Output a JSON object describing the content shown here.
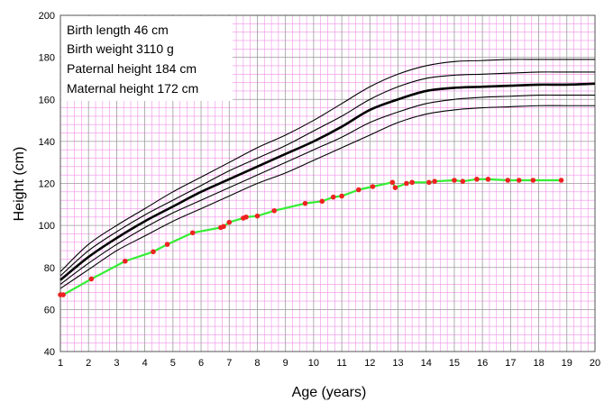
{
  "chart_data": {
    "type": "line",
    "xlabel": "Age (years)",
    "ylabel": "Height (cm)",
    "xlim": [
      1,
      20
    ],
    "ylim": [
      40,
      200
    ],
    "x_ticks": [
      1,
      2,
      3,
      4,
      5,
      6,
      7,
      8,
      9,
      10,
      11,
      12,
      13,
      14,
      15,
      16,
      17,
      18,
      19,
      20
    ],
    "y_ticks": [
      40,
      60,
      80,
      100,
      120,
      140,
      160,
      180,
      200
    ],
    "grid": "major and minor (pink minor grid, gray major grid)",
    "info_box": {
      "placement": "top-left",
      "lines": [
        "Birth length 46 cm",
        "Birth weight 3110 g",
        "Paternal height 184 cm",
        "Maternal height 172 cm"
      ]
    },
    "colors": {
      "minor_grid": "#f090e8",
      "major_grid": "#9a9a9a",
      "reference_curves": "#000000",
      "patient_line": "#33ee33",
      "patient_points": "#ee2222"
    },
    "reference_curves": [
      {
        "emphasis": "thin",
        "x": [
          1,
          2,
          3,
          4,
          5,
          6,
          7,
          8,
          9,
          10,
          11,
          12,
          13,
          14,
          15,
          16,
          17,
          18,
          19,
          20
        ],
        "y": [
          78,
          91,
          100,
          108,
          116,
          123,
          130,
          137,
          143,
          150,
          158,
          166,
          172,
          176,
          178,
          178.5,
          179,
          179,
          179,
          179
        ]
      },
      {
        "emphasis": "thin",
        "x": [
          1,
          2,
          3,
          4,
          5,
          6,
          7,
          8,
          9,
          10,
          11,
          12,
          13,
          14,
          15,
          16,
          17,
          18,
          19,
          20
        ],
        "y": [
          76,
          88,
          97,
          105,
          112,
          119,
          126,
          132,
          138,
          145,
          152,
          160,
          166,
          170,
          171.5,
          172,
          172.5,
          173,
          173,
          173
        ]
      },
      {
        "emphasis": "bold",
        "x": [
          1,
          2,
          3,
          4,
          5,
          6,
          7,
          8,
          9,
          10,
          11,
          12,
          13,
          14,
          15,
          16,
          17,
          18,
          19,
          20
        ],
        "y": [
          74,
          85,
          94,
          102,
          109,
          116,
          122,
          128,
          134,
          140,
          147,
          155,
          160,
          164,
          165.5,
          166,
          166.5,
          167,
          167,
          167.5
        ]
      },
      {
        "emphasis": "thin",
        "x": [
          1,
          2,
          3,
          4,
          5,
          6,
          7,
          8,
          9,
          10,
          11,
          12,
          13,
          14,
          15,
          16,
          17,
          18,
          19,
          20
        ],
        "y": [
          72,
          82,
          91,
          99,
          106,
          112,
          118,
          124,
          130,
          136,
          142,
          149,
          154,
          158,
          160,
          161,
          161.5,
          162,
          162,
          162
        ]
      },
      {
        "emphasis": "thin",
        "x": [
          1,
          2,
          3,
          4,
          5,
          6,
          7,
          8,
          9,
          10,
          11,
          12,
          13,
          14,
          15,
          16,
          17,
          18,
          19,
          20
        ],
        "y": [
          70,
          79,
          88,
          95,
          102,
          108,
          114,
          120,
          125,
          131,
          137,
          143,
          149,
          153,
          155,
          156,
          156.5,
          157,
          157,
          157
        ]
      }
    ],
    "patient": {
      "x": [
        1.0,
        1.1,
        2.1,
        3.3,
        4.3,
        4.8,
        5.7,
        6.7,
        6.8,
        7.0,
        7.5,
        7.6,
        8.0,
        8.6,
        9.7,
        10.3,
        10.7,
        11.0,
        11.6,
        12.1,
        12.8,
        12.9,
        13.3,
        13.5,
        14.1,
        14.3,
        15.0,
        15.3,
        15.8,
        16.2,
        16.9,
        17.3,
        17.8,
        18.8
      ],
      "y": [
        67,
        67,
        74.5,
        83,
        87.5,
        91,
        96.5,
        99,
        99.5,
        101.5,
        103.5,
        104,
        104.5,
        107,
        110.5,
        111.5,
        113.5,
        114,
        117,
        118.5,
        120.5,
        118,
        120,
        120.5,
        120.5,
        121,
        121.5,
        121,
        122,
        122,
        121.5,
        121.5,
        121.5,
        121.5
      ]
    }
  }
}
